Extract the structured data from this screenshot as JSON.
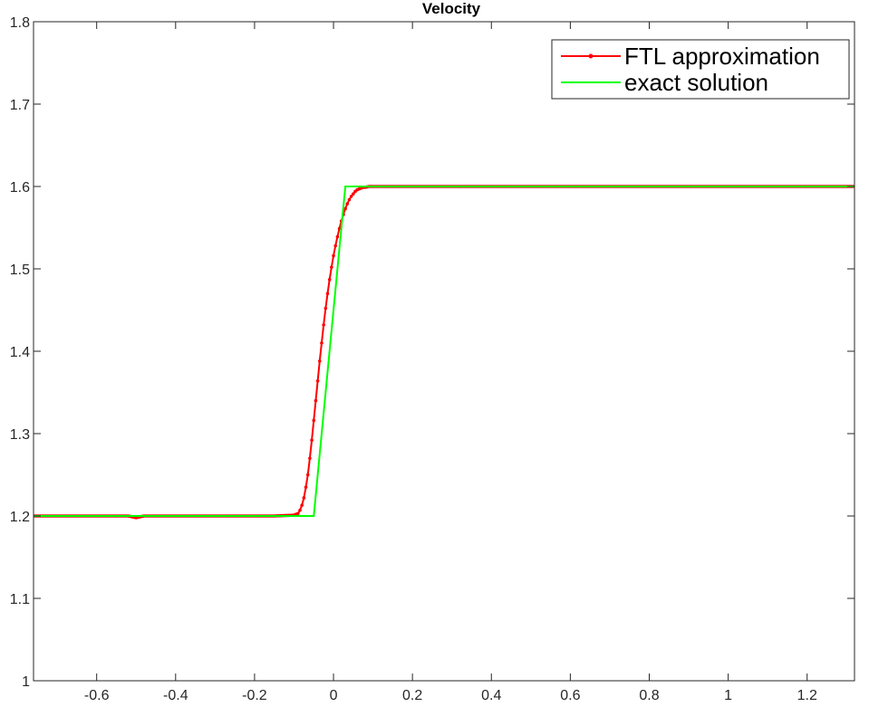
{
  "chart_data": {
    "type": "line",
    "title": "Velocity",
    "xlabel": "",
    "ylabel": "",
    "xlim": [
      -0.76,
      1.32
    ],
    "ylim": [
      1.0,
      1.8
    ],
    "xticks": [
      -0.6,
      -0.4,
      -0.2,
      0,
      0.2,
      0.4,
      0.6,
      0.8,
      1,
      1.2
    ],
    "xtick_labels": [
      "-0.6",
      "-0.4",
      "-0.2",
      "0",
      "0.2",
      "0.4",
      "0.6",
      "0.8",
      "1",
      "1.2"
    ],
    "yticks": [
      1.0,
      1.1,
      1.2,
      1.3,
      1.4,
      1.5,
      1.6,
      1.7,
      1.8
    ],
    "ytick_labels": [
      "1",
      "1.1",
      "1.2",
      "1.3",
      "1.4",
      "1.5",
      "1.6",
      "1.7",
      "1.8"
    ],
    "grid": false,
    "legend_position": "top-right",
    "series": [
      {
        "name": "FTL approximation",
        "color": "#ff0000",
        "marker": "dot",
        "x": [
          -0.76,
          -0.7,
          -0.6,
          -0.55,
          -0.52,
          -0.51,
          -0.5,
          -0.49,
          -0.48,
          -0.45,
          -0.4,
          -0.3,
          -0.2,
          -0.15,
          -0.1,
          -0.09,
          -0.085,
          -0.08,
          -0.075,
          -0.07,
          -0.065,
          -0.06,
          -0.055,
          -0.05,
          -0.045,
          -0.04,
          -0.035,
          -0.03,
          -0.025,
          -0.02,
          -0.015,
          -0.01,
          -0.005,
          0.0,
          0.005,
          0.01,
          0.015,
          0.02,
          0.025,
          0.03,
          0.035,
          0.04,
          0.045,
          0.05,
          0.055,
          0.06,
          0.065,
          0.07,
          0.075,
          0.08,
          0.09,
          0.1,
          0.12,
          0.15,
          0.2,
          0.3,
          0.4,
          0.5,
          0.6,
          0.7,
          0.8,
          0.9,
          1.0,
          1.1,
          1.2,
          1.32
        ],
        "y": [
          1.2,
          1.2,
          1.2,
          1.2,
          1.2,
          1.199,
          1.198,
          1.199,
          1.2,
          1.2,
          1.2,
          1.2,
          1.2,
          1.2,
          1.201,
          1.203,
          1.207,
          1.213,
          1.222,
          1.235,
          1.25,
          1.27,
          1.292,
          1.316,
          1.34,
          1.364,
          1.388,
          1.41,
          1.432,
          1.452,
          1.47,
          1.487,
          1.502,
          1.516,
          1.528,
          1.539,
          1.549,
          1.558,
          1.566,
          1.573,
          1.579,
          1.584,
          1.588,
          1.591,
          1.594,
          1.596,
          1.597,
          1.598,
          1.599,
          1.599,
          1.6,
          1.6,
          1.6,
          1.6,
          1.6,
          1.6,
          1.6,
          1.6,
          1.6,
          1.6,
          1.6,
          1.6,
          1.6,
          1.6,
          1.6,
          1.6
        ]
      },
      {
        "name": "exact solution",
        "color": "#00ff00",
        "marker": "none",
        "x": [
          -0.76,
          -0.05,
          0.03,
          1.32
        ],
        "y": [
          1.2,
          1.2,
          1.6,
          1.6
        ]
      }
    ]
  }
}
